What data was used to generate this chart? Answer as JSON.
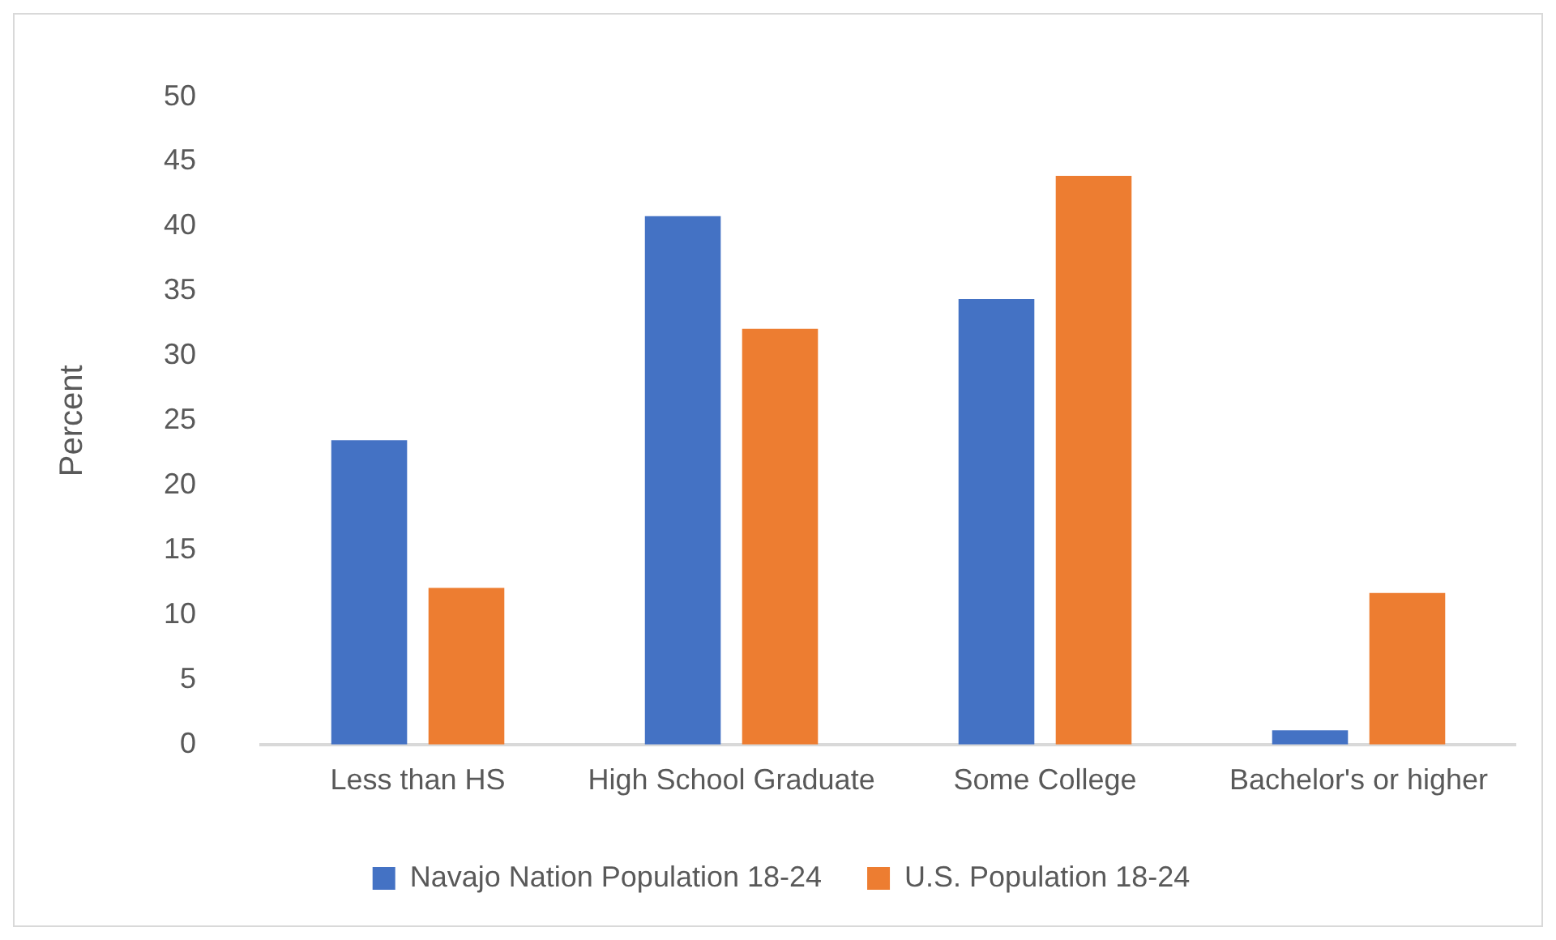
{
  "chart_data": {
    "type": "bar",
    "ylabel": "Percent",
    "categories": [
      "Less than HS",
      "High School Graduate",
      "Some College",
      "Bachelor's or higher"
    ],
    "series": [
      {
        "name": "Navajo Nation Population 18-24",
        "color": "#4472c4",
        "values": [
          23.5,
          40.8,
          34.4,
          1.1
        ]
      },
      {
        "name": "U.S. Population 18-24",
        "color": "#ed7d31",
        "values": [
          12.1,
          32.1,
          43.9,
          11.7
        ]
      }
    ],
    "ylim": [
      0,
      50
    ],
    "yticks": [
      0,
      5,
      10,
      15,
      20,
      25,
      30,
      35,
      40,
      45,
      50
    ],
    "grid": false,
    "legend": "bottom"
  }
}
